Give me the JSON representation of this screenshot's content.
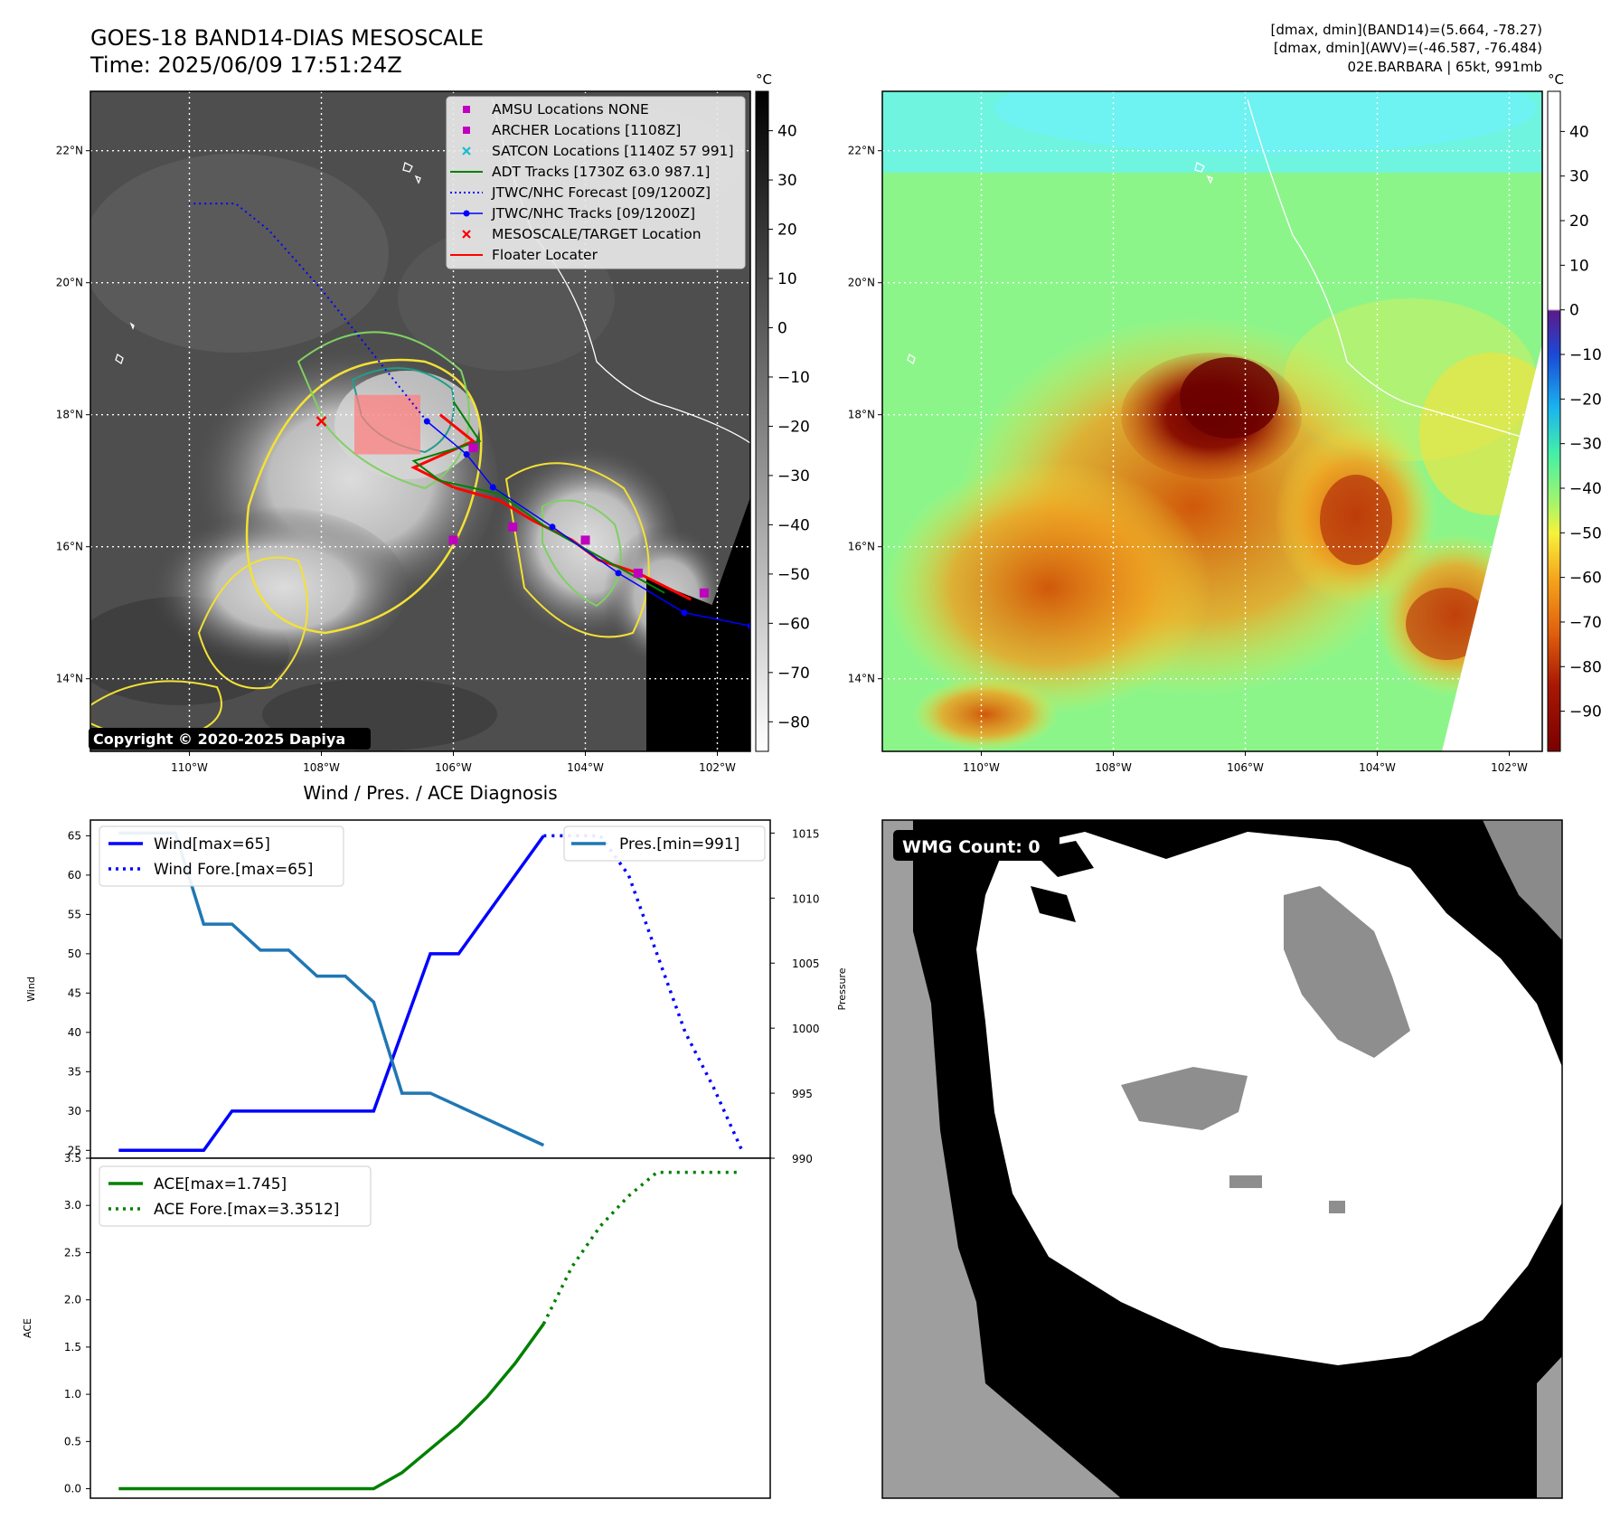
{
  "header": {
    "title_line1": "GOES-18 BAND14-DIAS MESOSCALE",
    "title_line2": "Time: 2025/06/09 17:51:24Z",
    "info_line1": "[dmax, dmin](BAND14)=(5.664, -78.27)",
    "info_line2": "[dmax, dmin](AWV)=(-46.587, -76.484)",
    "info_line3": "02E.BARBARA | 65kt, 991mb"
  },
  "colors": {
    "coast": "#ffffff",
    "contour_yellow": "#f3e135",
    "contour_green": "#7fd062",
    "contour_teal": "#1f9e89",
    "track_red": "#ff0000",
    "jtwc_blue": "#0000ff",
    "adt_green": "#008000",
    "amsu_magenta": "#bf00bf",
    "wind_blue": "#0000ff",
    "pres_blue": "#1f77b4",
    "ace_green": "#008000"
  },
  "chart_data": [
    {
      "type": "heatmap",
      "name": "ir-grayscale-map",
      "xticks": [
        "110°W",
        "108°W",
        "106°W",
        "104°W",
        "102°W"
      ],
      "yticks": [
        "22°N",
        "20°N",
        "18°N",
        "16°N",
        "14°N"
      ],
      "xlim": [
        -111.5,
        -101.5
      ],
      "ylim": [
        12.9,
        22.9
      ],
      "colorbar": {
        "unit": "°C",
        "ticks": [
          40,
          30,
          20,
          10,
          0,
          -10,
          -20,
          -30,
          -40,
          -50,
          -60,
          -70,
          -80
        ]
      },
      "copyright": "Copyright © 2020-2025 Dapiya",
      "legend": {
        "placement": "top-right",
        "entries": [
          {
            "label": "AMSU Locations NONE",
            "marker": "square",
            "color": "#bf00bf"
          },
          {
            "label": "ARCHER Locations [1108Z]",
            "marker": "square",
            "color": "#bf00bf"
          },
          {
            "label": "SATCON Locations [1140Z 57 991]",
            "marker": "x",
            "color": "#17becf"
          },
          {
            "label": "ADT Tracks [1730Z 63.0 987.1]",
            "marker": "line",
            "color": "#008000"
          },
          {
            "label": "JTWC/NHC Forecast [09/1200Z]",
            "marker": "dotted",
            "color": "#0000ff"
          },
          {
            "label": "JTWC/NHC Tracks [09/1200Z]",
            "marker": "line-dot",
            "color": "#0000ff"
          },
          {
            "label": "MESOSCALE/TARGET Location",
            "marker": "x",
            "color": "#ff0000"
          },
          {
            "label": "Floater Locater",
            "marker": "line",
            "color": "#ff0000"
          }
        ]
      },
      "tracks": {
        "jtwc_track": [
          [
            -101.5,
            14.8
          ],
          [
            -102.5,
            15.0
          ],
          [
            -103.5,
            15.6
          ],
          [
            -104.5,
            16.3
          ],
          [
            -105.4,
            16.9
          ],
          [
            -105.8,
            17.4
          ],
          [
            -106.4,
            17.9
          ]
        ],
        "jtwc_forecast": [
          [
            -106.4,
            17.9
          ],
          [
            -107.2,
            18.9
          ],
          [
            -108.0,
            19.9
          ],
          [
            -108.8,
            20.8
          ],
          [
            -109.3,
            21.2
          ],
          [
            -110.0,
            21.2
          ]
        ],
        "adt_track": [
          [
            -102.8,
            15.3
          ],
          [
            -103.7,
            15.8
          ],
          [
            -104.6,
            16.3
          ],
          [
            -105.3,
            16.8
          ],
          [
            -106.2,
            17.0
          ],
          [
            -106.6,
            17.3
          ],
          [
            -105.6,
            17.6
          ],
          [
            -106.0,
            18.2
          ]
        ],
        "floater": [
          [
            -102.4,
            15.2
          ],
          [
            -103.2,
            15.6
          ],
          [
            -103.8,
            15.8
          ],
          [
            -104.2,
            16.1
          ],
          [
            -104.8,
            16.4
          ],
          [
            -105.3,
            16.7
          ],
          [
            -106.0,
            16.9
          ],
          [
            -106.6,
            17.2
          ],
          [
            -105.7,
            17.6
          ],
          [
            -106.2,
            18.0
          ]
        ],
        "archer": [
          [
            -106.0,
            16.1
          ],
          [
            -105.1,
            16.3
          ],
          [
            -104.0,
            16.1
          ],
          [
            -102.2,
            15.3
          ],
          [
            -105.7,
            17.5
          ],
          [
            -103.2,
            15.6
          ]
        ],
        "target": [
          [
            -108.0,
            17.9
          ]
        ],
        "floater_box": [
          -107.5,
          17.4,
          -106.5,
          18.3
        ]
      }
    },
    {
      "type": "heatmap",
      "name": "enhanced-ir-map",
      "xticks": [
        "110°W",
        "108°W",
        "106°W",
        "104°W",
        "102°W"
      ],
      "yticks": [
        "22°N",
        "20°N",
        "18°N",
        "16°N",
        "14°N"
      ],
      "xlim": [
        -111.5,
        -101.5
      ],
      "ylim": [
        12.9,
        22.9
      ],
      "colorbar": {
        "unit": "°C",
        "ticks": [
          40,
          30,
          20,
          10,
          0,
          -10,
          -20,
          -30,
          -40,
          -50,
          -60,
          -70,
          -80,
          -90
        ]
      }
    },
    {
      "type": "line",
      "name": "wind-pressure",
      "title": "Wind / Pres. / ACE Diagnosis",
      "ylabel": "Wind",
      "y2label": "Pressure",
      "ylim": [
        24,
        67
      ],
      "y2lim": [
        990,
        1016
      ],
      "xlim": [
        0,
        24
      ],
      "yticks": [
        25,
        30,
        35,
        40,
        45,
        50,
        55,
        60,
        65
      ],
      "y2ticks": [
        990,
        995,
        1000,
        1005,
        1010,
        1015
      ],
      "x": [
        1,
        2,
        3,
        4,
        5,
        6,
        7,
        8,
        9,
        10,
        11,
        12,
        13,
        14,
        15,
        16
      ],
      "series": [
        {
          "name": "Wind[max=65]",
          "style": "solid",
          "axis": "left",
          "x": [
            1,
            2,
            3,
            4,
            5,
            6,
            7,
            8,
            9,
            10,
            11,
            12,
            13,
            14,
            15,
            16
          ],
          "values": [
            25,
            25,
            25,
            25,
            30,
            30,
            30,
            30,
            30,
            30,
            40,
            50,
            50,
            55,
            60,
            65
          ]
        },
        {
          "name": "Wind Fore.[max=65]",
          "style": "dotted",
          "axis": "left",
          "x": [
            16,
            17,
            18,
            19,
            20,
            21,
            22,
            23
          ],
          "values": [
            65,
            65,
            65,
            60,
            50,
            40,
            33,
            25
          ]
        },
        {
          "name": "Pres.[min=991]",
          "style": "solid",
          "axis": "right",
          "x": [
            1,
            2,
            3,
            4,
            5,
            6,
            7,
            8,
            9,
            10,
            11,
            12,
            13,
            14,
            15,
            16
          ],
          "values": [
            1015,
            1015,
            1015,
            1008,
            1008,
            1006,
            1006,
            1004,
            1004,
            1002,
            995,
            995,
            994,
            993,
            992,
            991
          ]
        }
      ],
      "legend": "top-left / top-right"
    },
    {
      "type": "line",
      "name": "ace",
      "ylabel": "ACE",
      "ylim": [
        -0.1,
        3.5
      ],
      "xlim": [
        0,
        24
      ],
      "yticks": [
        "0.0",
        "0.5",
        "1.0",
        "1.5",
        "2.0",
        "2.5",
        "3.0",
        "3.5"
      ],
      "series": [
        {
          "name": "ACE[max=1.745]",
          "style": "solid",
          "x": [
            1,
            2,
            3,
            4,
            5,
            6,
            7,
            8,
            9,
            10,
            11,
            12,
            13,
            14,
            15,
            16
          ],
          "values": [
            0,
            0,
            0,
            0,
            0,
            0,
            0,
            0,
            0,
            0,
            0.17,
            0.42,
            0.67,
            0.97,
            1.33,
            1.745
          ]
        },
        {
          "name": "ACE Fore.[max=3.3512]",
          "style": "dotted",
          "x": [
            16,
            17,
            18,
            19,
            20,
            21,
            22,
            23
          ],
          "values": [
            1.745,
            2.35,
            2.78,
            3.1,
            3.35,
            3.35,
            3.35,
            3.35
          ]
        }
      ],
      "legend": "top-left"
    },
    {
      "type": "heatmap",
      "name": "wmg-mask",
      "label": "WMG Count: 0"
    }
  ]
}
